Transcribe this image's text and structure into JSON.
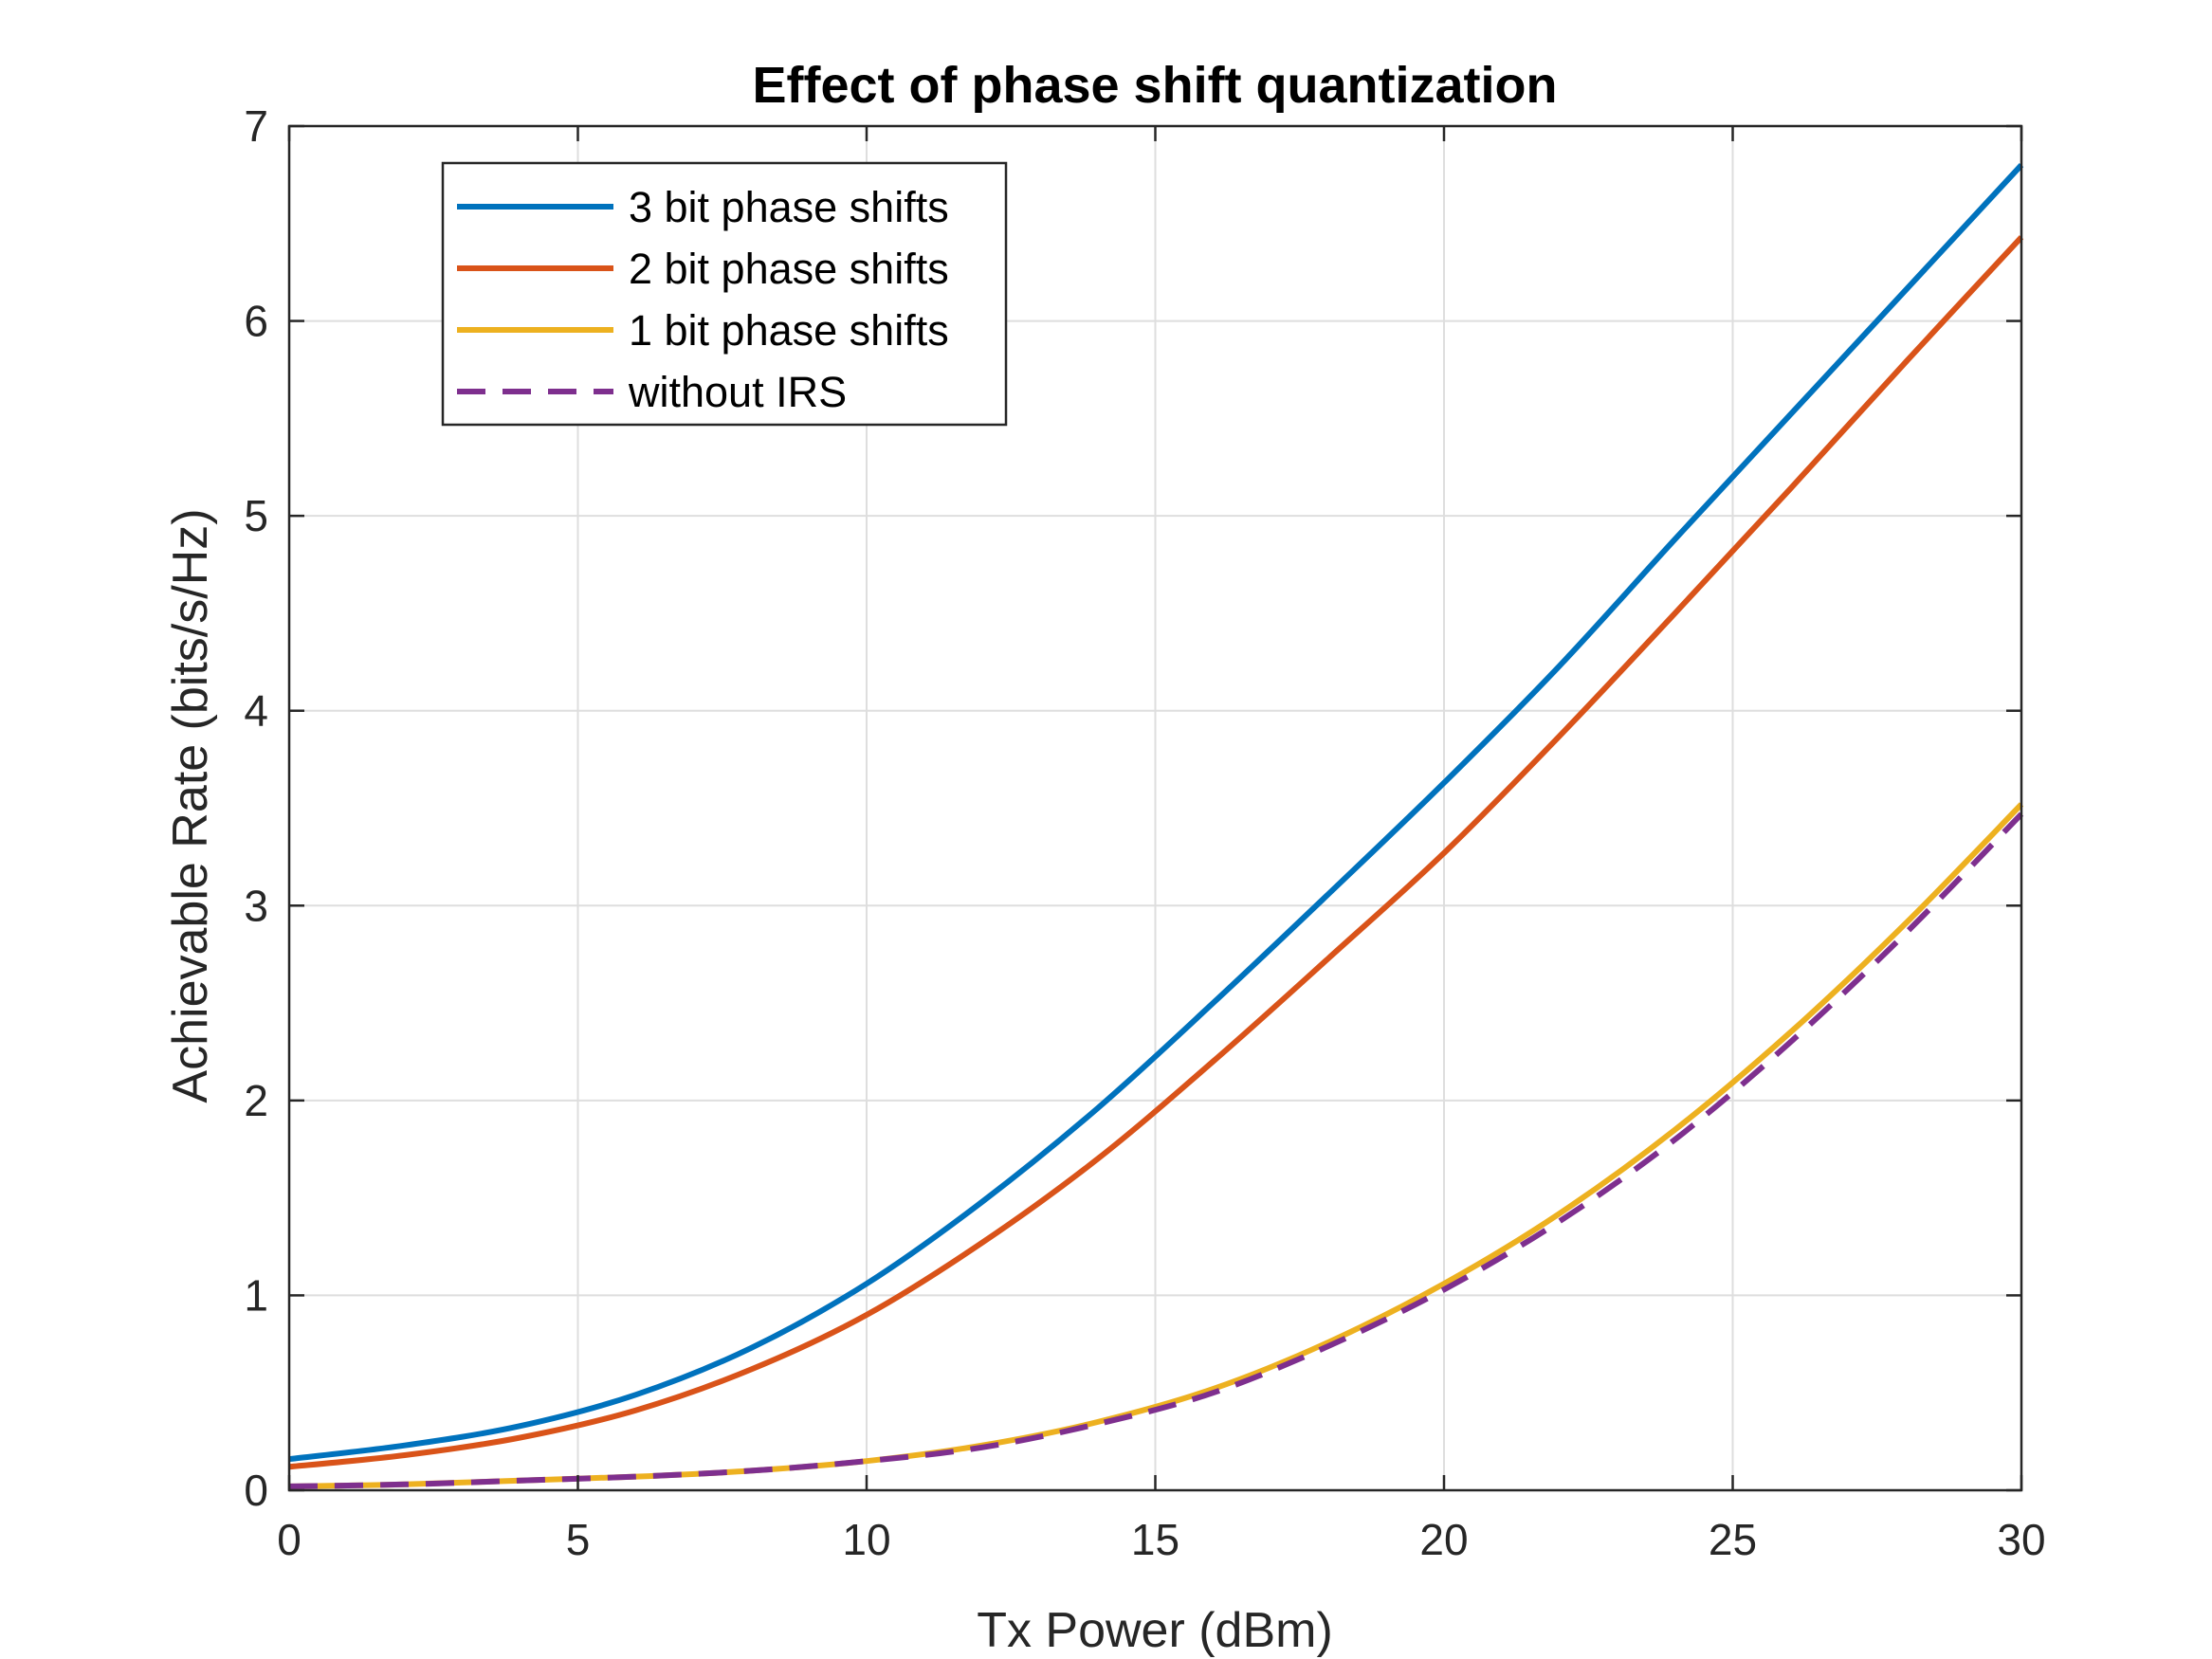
{
  "chart_data": {
    "type": "line",
    "title": "Effect of phase shift quantization",
    "xlabel": "Tx Power (dBm)",
    "ylabel": "Achievable Rate (bits/s/Hz)",
    "xlim": [
      0,
      30
    ],
    "ylim": [
      0,
      7
    ],
    "xticks": [
      0,
      5,
      10,
      15,
      20,
      25,
      30
    ],
    "yticks": [
      0,
      1,
      2,
      3,
      4,
      5,
      6,
      7
    ],
    "grid": true,
    "legend_position": "top-left",
    "x": [
      0,
      2,
      4,
      6,
      8,
      10,
      12,
      14,
      16,
      18,
      20,
      22,
      24,
      26,
      28,
      30
    ],
    "series": [
      {
        "name": "3 bit phase shifts",
        "color": "#0072BD",
        "dash": "solid",
        "values": [
          0.16,
          0.23,
          0.33,
          0.49,
          0.73,
          1.06,
          1.48,
          1.96,
          2.5,
          3.06,
          3.63,
          4.23,
          4.88,
          5.52,
          6.16,
          6.8
        ]
      },
      {
        "name": "2 bit phase shifts",
        "color": "#D95319",
        "dash": "solid",
        "values": [
          0.12,
          0.18,
          0.27,
          0.41,
          0.62,
          0.9,
          1.27,
          1.7,
          2.2,
          2.73,
          3.27,
          3.87,
          4.5,
          5.14,
          5.79,
          6.43
        ]
      },
      {
        "name": "1 bit phase shifts",
        "color": "#EDB120",
        "dash": "solid",
        "values": [
          0.02,
          0.03,
          0.05,
          0.07,
          0.1,
          0.15,
          0.23,
          0.35,
          0.52,
          0.76,
          1.06,
          1.42,
          1.85,
          2.35,
          2.91,
          3.52
        ]
      },
      {
        "name": "without IRS",
        "color": "#7E2F8E",
        "dash": "dashed",
        "values": [
          0.02,
          0.03,
          0.05,
          0.07,
          0.1,
          0.15,
          0.22,
          0.34,
          0.5,
          0.74,
          1.03,
          1.38,
          1.8,
          2.3,
          2.86,
          3.47
        ]
      }
    ]
  }
}
